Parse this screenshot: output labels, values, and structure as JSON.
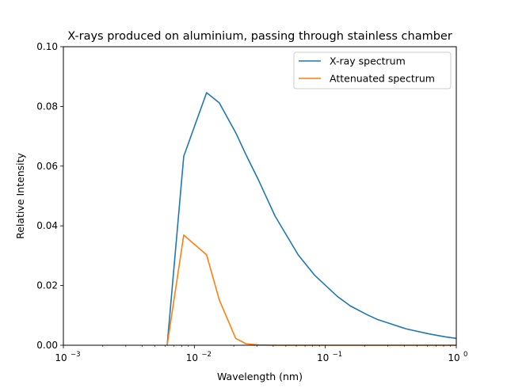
{
  "chart_data": {
    "type": "line",
    "title": "X-rays produced on aluminium, passing through stainless chamber",
    "xlabel": "Wavelength (nm)",
    "ylabel": "Relative Intensity",
    "xscale": "log",
    "xlim": [
      0.001,
      1
    ],
    "ylim": [
      0.0,
      0.1
    ],
    "x_ticks": [
      {
        "value": 0.001,
        "base": "10",
        "exp": "−3"
      },
      {
        "value": 0.01,
        "base": "10",
        "exp": "−2"
      },
      {
        "value": 0.1,
        "base": "10",
        "exp": "−1"
      },
      {
        "value": 1,
        "base": "10",
        "exp": "0"
      }
    ],
    "y_ticks": [
      "0.00",
      "0.02",
      "0.04",
      "0.06",
      "0.08",
      "0.10"
    ],
    "grid": false,
    "legend_position": "top-right",
    "series": [
      {
        "name": "X-ray spectrum",
        "color": "#1f77b4",
        "x": [
          0.0062,
          0.0083,
          0.0124,
          0.0155,
          0.0207,
          0.0248,
          0.031,
          0.0413,
          0.062,
          0.0827,
          0.124,
          0.155,
          0.207,
          0.248,
          0.31,
          0.413,
          0.62,
          0.827,
          1.0
        ],
        "y": [
          0.0,
          0.0633,
          0.0846,
          0.0812,
          0.0712,
          0.0638,
          0.0552,
          0.0433,
          0.0303,
          0.0235,
          0.0163,
          0.0132,
          0.0103,
          0.0087,
          0.0073,
          0.0055,
          0.0038,
          0.0028,
          0.0023
        ]
      },
      {
        "name": "Attenuated spectrum",
        "color": "#ff7f0e",
        "x": [
          0.0062,
          0.0083,
          0.0124,
          0.0155,
          0.0207,
          0.0248,
          0.031,
          0.0413,
          0.062,
          0.0827,
          0.124,
          0.155,
          0.207,
          0.248,
          0.31,
          0.413,
          0.62,
          0.827,
          1.0
        ],
        "y": [
          0.0,
          0.0369,
          0.0303,
          0.0152,
          0.0023,
          0.0005,
          0.0001,
          0.0,
          0.0,
          0.0,
          0.0,
          0.0,
          0.0,
          0.0,
          0.0,
          0.0,
          0.0,
          0.0,
          0.0
        ]
      }
    ]
  }
}
